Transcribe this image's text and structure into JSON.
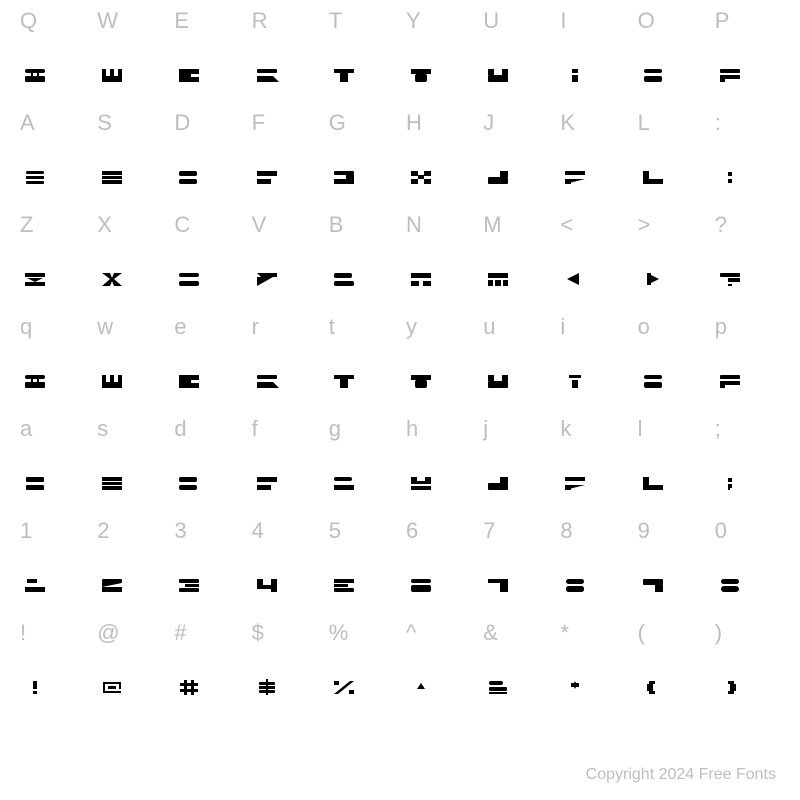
{
  "grid": {
    "rows": [
      [
        "Q",
        "W",
        "E",
        "R",
        "T",
        "Y",
        "U",
        "I",
        "O",
        "P"
      ],
      [
        "A",
        "S",
        "D",
        "F",
        "G",
        "H",
        "J",
        "K",
        "L",
        ":"
      ],
      [
        "Z",
        "X",
        "C",
        "V",
        "B",
        "N",
        "M",
        "<",
        ">",
        "?"
      ],
      [
        "q",
        "w",
        "e",
        "r",
        "t",
        "y",
        "u",
        "i",
        "o",
        "p"
      ],
      [
        "a",
        "s",
        "d",
        "f",
        "g",
        "h",
        "j",
        "k",
        "l",
        ";"
      ],
      [
        "1",
        "2",
        "3",
        "4",
        "5",
        "6",
        "7",
        "8",
        "9",
        "0"
      ],
      [
        "!",
        "@",
        "#",
        "$",
        "%",
        "^",
        "&",
        "*",
        "(",
        ")"
      ]
    ]
  },
  "glyph_shapes": {
    "row0": [
      "q-glyph",
      "w-glyph",
      "e-glyph",
      "r-glyph",
      "t-glyph",
      "y-glyph",
      "u-glyph",
      "i-glyph",
      "o-glyph",
      "p-glyph"
    ],
    "row1": [
      "a-glyph",
      "s-glyph",
      "d-glyph",
      "f-glyph",
      "g-glyph",
      "h-glyph",
      "j-glyph",
      "k-glyph",
      "l-glyph",
      "colon-glyph"
    ],
    "row2": [
      "z-glyph",
      "x-glyph",
      "c-glyph",
      "v-glyph",
      "b-glyph",
      "n-glyph",
      "m-glyph",
      "lt-glyph",
      "gt-glyph",
      "qmark-glyph"
    ],
    "row3": [
      "q-glyph",
      "w-glyph",
      "e-glyph",
      "r-glyph",
      "t-glyph",
      "y-glyph",
      "u-glyph",
      "i2-glyph",
      "o-glyph",
      "p-glyph"
    ],
    "row4": [
      "a2-glyph",
      "s-glyph",
      "d-glyph",
      "f-glyph",
      "g2-glyph",
      "h2-glyph",
      "j-glyph",
      "k-glyph",
      "l-glyph",
      "semi-glyph"
    ],
    "row5": [
      "n1-glyph",
      "n2-glyph",
      "n3-glyph",
      "n4-glyph",
      "n5-glyph",
      "n6-glyph",
      "n7-glyph",
      "n8-glyph",
      "n9-glyph",
      "n0-glyph"
    ],
    "row6": [
      "excl-glyph",
      "at-glyph",
      "hash-glyph",
      "dollar-glyph",
      "pct-glyph",
      "caret-glyph",
      "amp-glyph",
      "star-glyph",
      "lparen-glyph",
      "rparen-glyph"
    ]
  },
  "colors": {
    "label": "#bdbdbd",
    "glyph": "#000000",
    "background": "#ffffff"
  },
  "typography": {
    "label_fontsize": 22,
    "copyright_fontsize": 16
  },
  "copyright": "Copyright 2024 Free Fonts"
}
